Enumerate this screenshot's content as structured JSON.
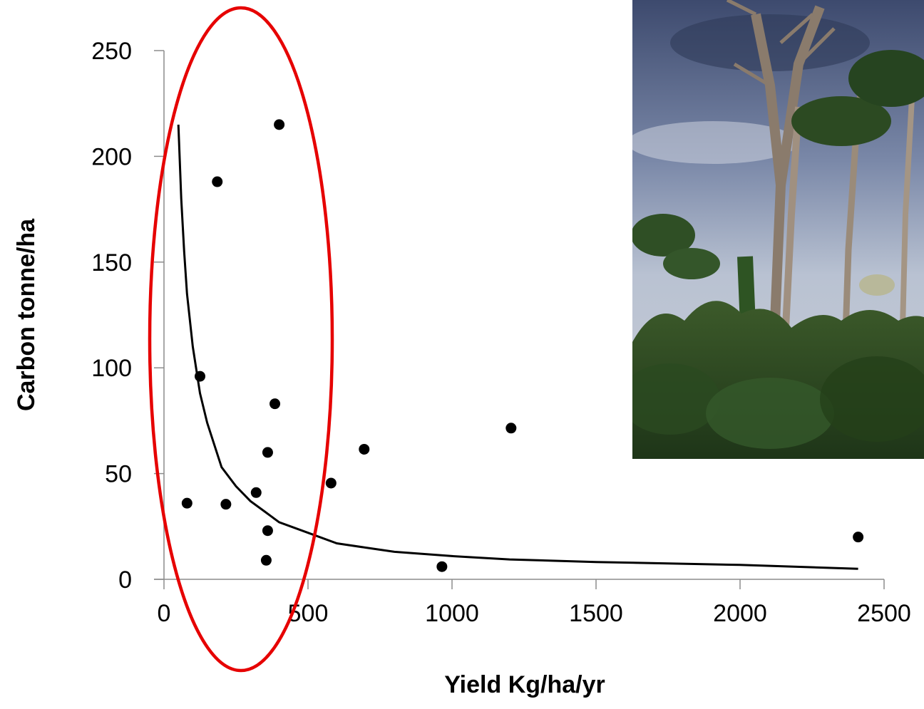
{
  "chart_data": {
    "type": "scatter",
    "title": "",
    "xlabel": "Yield Kg/ha/yr",
    "ylabel": "Carbon tonne/ha",
    "xlim": [
      0,
      2500
    ],
    "ylim": [
      0,
      250
    ],
    "x_ticks": [
      "0",
      "500",
      "1000",
      "1500",
      "2000",
      "2500"
    ],
    "y_ticks": [
      "0",
      "50",
      "100",
      "150",
      "200",
      "250"
    ],
    "grid": false,
    "legend": "none",
    "series": [
      {
        "type": "scatter",
        "color": "#000000",
        "points": [
          {
            "x": 80,
            "y": 36
          },
          {
            "x": 125,
            "y": 96
          },
          {
            "x": 185,
            "y": 188
          },
          {
            "x": 215,
            "y": 35.5
          },
          {
            "x": 320,
            "y": 41
          },
          {
            "x": 360,
            "y": 60
          },
          {
            "x": 360,
            "y": 23
          },
          {
            "x": 355,
            "y": 9
          },
          {
            "x": 385,
            "y": 83
          },
          {
            "x": 400,
            "y": 215
          },
          {
            "x": 580,
            "y": 45.5
          },
          {
            "x": 695,
            "y": 61.5
          },
          {
            "x": 965,
            "y": 6
          },
          {
            "x": 1205,
            "y": 71.5
          },
          {
            "x": 2410,
            "y": 20
          }
        ]
      },
      {
        "type": "line",
        "color": "#000000",
        "points": [
          {
            "x": 50,
            "y": 215
          },
          {
            "x": 60,
            "y": 180
          },
          {
            "x": 70,
            "y": 155
          },
          {
            "x": 80,
            "y": 135
          },
          {
            "x": 100,
            "y": 110
          },
          {
            "x": 125,
            "y": 88
          },
          {
            "x": 150,
            "y": 74
          },
          {
            "x": 200,
            "y": 53
          },
          {
            "x": 250,
            "y": 44
          },
          {
            "x": 300,
            "y": 37
          },
          {
            "x": 350,
            "y": 32
          },
          {
            "x": 400,
            "y": 27
          },
          {
            "x": 500,
            "y": 22
          },
          {
            "x": 600,
            "y": 17
          },
          {
            "x": 700,
            "y": 15
          },
          {
            "x": 800,
            "y": 13
          },
          {
            "x": 1000,
            "y": 11
          },
          {
            "x": 1200,
            "y": 9.4
          },
          {
            "x": 1500,
            "y": 8.2
          },
          {
            "x": 2000,
            "y": 6.8
          },
          {
            "x": 2410,
            "y": 5
          }
        ]
      }
    ],
    "annotations": [
      {
        "shape": "ellipse",
        "color": "#e60000",
        "description": "highlight of low-yield points"
      }
    ],
    "inset": {
      "description": "tropical forest photograph"
    }
  }
}
